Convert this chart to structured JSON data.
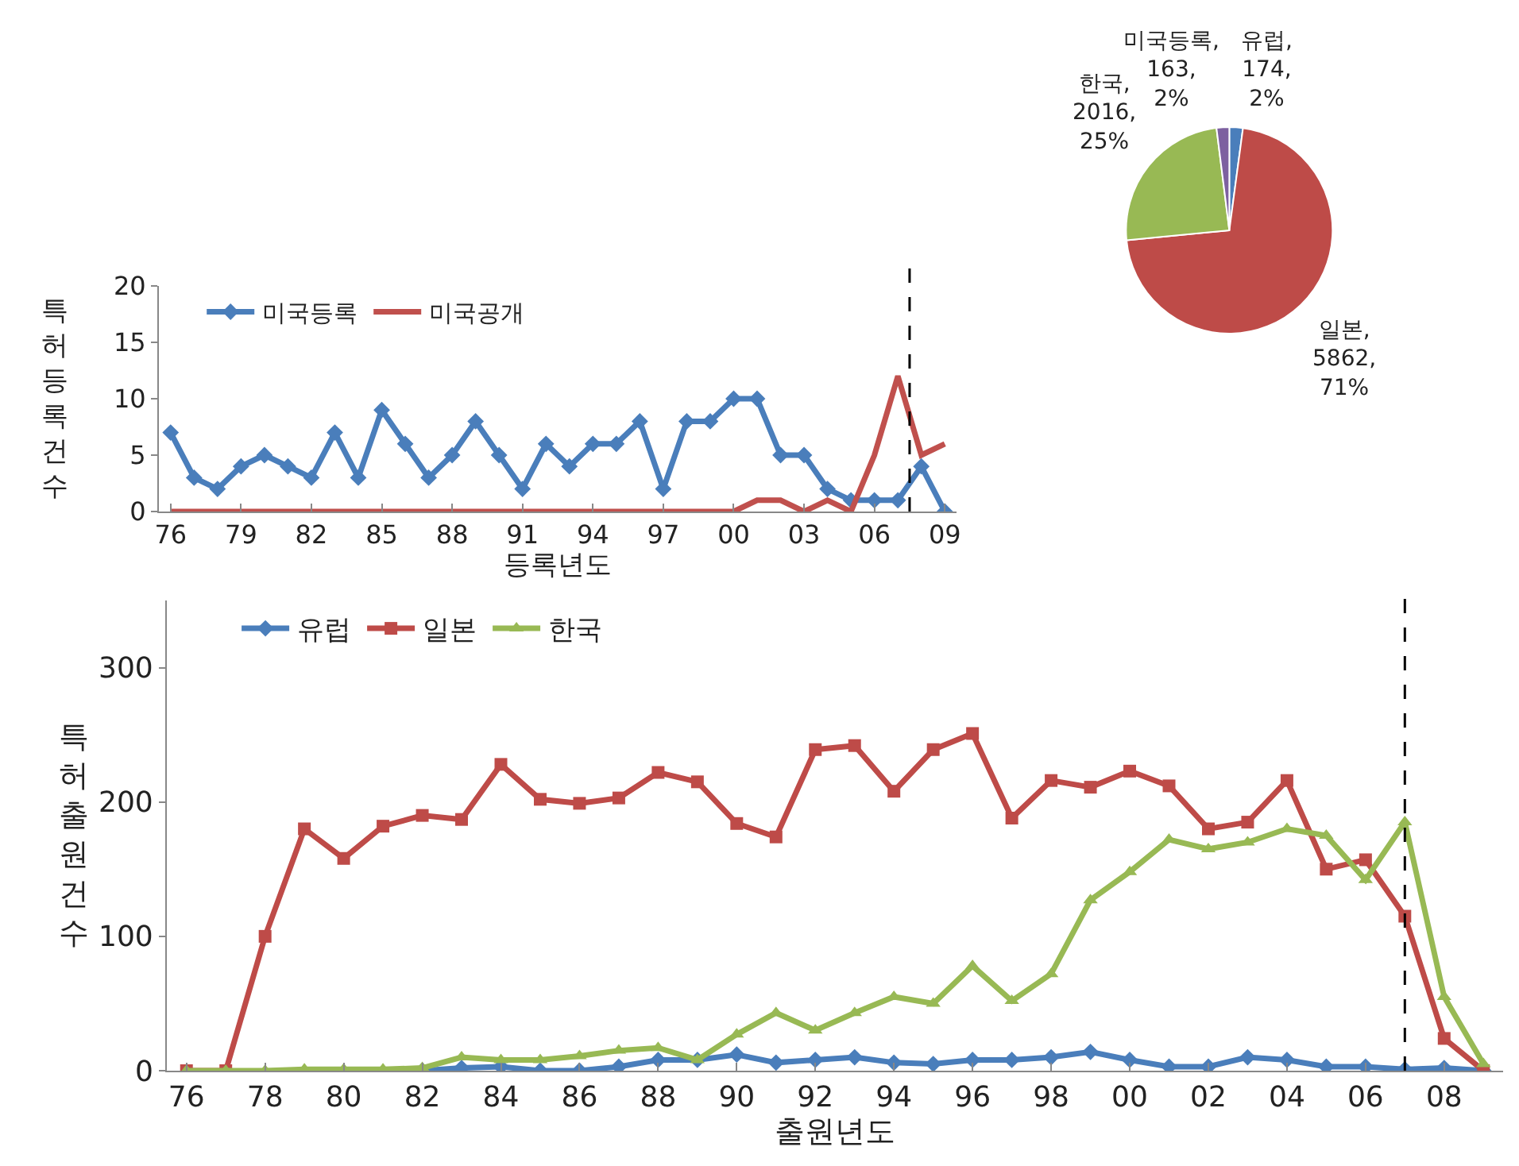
{
  "chart_data": [
    {
      "type": "pie",
      "categories": [
        "유럽",
        "일본",
        "한국",
        "미국등록"
      ],
      "values": [
        174,
        5862,
        2016,
        163
      ],
      "value_labels": [
        ",\n174,\n2%",
        ",\n5862,\n71%",
        ",\n2016,\n25%",
        ",\n163,\n2%"
      ],
      "colors": [
        "#4a7ebb",
        "#be4b48",
        "#98b954",
        "#7d60a0"
      ],
      "legend": false
    },
    {
      "type": "line",
      "xlabel": "등록년도",
      "ylabel": "특허등록건수",
      "x": [
        1976,
        1977,
        1978,
        1979,
        1980,
        1981,
        1982,
        1983,
        1984,
        1985,
        1986,
        1987,
        1988,
        1989,
        1990,
        1991,
        1992,
        1993,
        1994,
        1995,
        1996,
        1997,
        1998,
        1999,
        2000,
        2001,
        2002,
        2003,
        2004,
        2005,
        2006,
        2007,
        2008,
        2009
      ],
      "series": [
        {
          "name": "미국등록",
          "color": "#4a7ebb",
          "marker": "diamond",
          "values": [
            7,
            3,
            2,
            4,
            5,
            4,
            3,
            7,
            3,
            9,
            6,
            3,
            5,
            8,
            5,
            2,
            6,
            4,
            6,
            6,
            8,
            2,
            8,
            8,
            10,
            10,
            5,
            5,
            2,
            1,
            1,
            1,
            4,
            0
          ]
        },
        {
          "name": "미국공개",
          "color": "#c0504d",
          "marker": "none",
          "values": [
            0,
            0,
            0,
            0,
            0,
            0,
            0,
            0,
            0,
            0,
            0,
            0,
            0,
            0,
            0,
            0,
            0,
            0,
            0,
            0,
            0,
            0,
            0,
            0,
            0,
            1,
            1,
            0,
            1,
            0,
            5,
            12,
            5,
            6
          ]
        }
      ],
      "xlim": [
        1975.5,
        2009.5
      ],
      "xticks": [
        {
          "value": 1976,
          "label": "76"
        },
        {
          "value": 1979,
          "label": "79"
        },
        {
          "value": 1982,
          "label": "82"
        },
        {
          "value": 1985,
          "label": "85"
        },
        {
          "value": 1988,
          "label": "88"
        },
        {
          "value": 1991,
          "label": "91"
        },
        {
          "value": 1994,
          "label": "94"
        },
        {
          "value": 1997,
          "label": "97"
        },
        {
          "value": 2000,
          "label": "00"
        },
        {
          "value": 2003,
          "label": "03"
        },
        {
          "value": 2006,
          "label": "06"
        },
        {
          "value": 2009,
          "label": "09"
        }
      ],
      "ylim": [
        0,
        20
      ],
      "yticks": [
        0,
        5,
        10,
        15,
        20
      ],
      "grid": false,
      "legend": "top left",
      "line_style": "solid",
      "ref_lines": [
        {
          "axis": "x",
          "value": 2007.5,
          "line_style": "dashed",
          "color": "#000000"
        }
      ]
    },
    {
      "type": "line",
      "xlabel": "출원년도",
      "ylabel": "특허출원건수",
      "x": [
        1976,
        1977,
        1978,
        1979,
        1980,
        1981,
        1982,
        1983,
        1984,
        1985,
        1986,
        1987,
        1988,
        1989,
        1990,
        1991,
        1992,
        1993,
        1994,
        1995,
        1996,
        1997,
        1998,
        1999,
        2000,
        2001,
        2002,
        2003,
        2004,
        2005,
        2006,
        2007,
        2008,
        2009
      ],
      "series": [
        {
          "name": "유럽",
          "color": "#4a7ebb",
          "marker": "diamond",
          "values": [
            null,
            null,
            null,
            null,
            null,
            null,
            0,
            2,
            3,
            0,
            0,
            3,
            8,
            8,
            12,
            6,
            8,
            10,
            6,
            5,
            8,
            8,
            10,
            14,
            8,
            3,
            3,
            10,
            8,
            3,
            3,
            1,
            2,
            0
          ]
        },
        {
          "name": "일본",
          "color": "#be4b48",
          "marker": "square",
          "values": [
            0,
            0,
            100,
            180,
            158,
            182,
            190,
            187,
            228,
            202,
            199,
            203,
            222,
            215,
            184,
            174,
            239,
            242,
            208,
            239,
            251,
            188,
            216,
            211,
            223,
            212,
            180,
            185,
            216,
            150,
            157,
            115,
            24,
            0
          ]
        },
        {
          "name": "한국",
          "color": "#98b954",
          "marker": "triangle",
          "values": [
            0,
            0,
            0,
            1,
            1,
            1,
            2,
            10,
            8,
            8,
            11,
            15,
            17,
            8,
            27,
            43,
            30,
            43,
            55,
            50,
            78,
            52,
            72,
            127,
            148,
            172,
            165,
            170,
            180,
            175,
            142,
            185,
            55,
            5
          ]
        }
      ],
      "xlim": [
        1975.5,
        2009.5
      ],
      "xticks": [
        {
          "value": 1976,
          "label": "76"
        },
        {
          "value": 1978,
          "label": "78"
        },
        {
          "value": 1980,
          "label": "80"
        },
        {
          "value": 1982,
          "label": "82"
        },
        {
          "value": 1984,
          "label": "84"
        },
        {
          "value": 1986,
          "label": "86"
        },
        {
          "value": 1988,
          "label": "88"
        },
        {
          "value": 1990,
          "label": "90"
        },
        {
          "value": 1992,
          "label": "92"
        },
        {
          "value": 1994,
          "label": "94"
        },
        {
          "value": 1996,
          "label": "96"
        },
        {
          "value": 1998,
          "label": "98"
        },
        {
          "value": 2000,
          "label": "00"
        },
        {
          "value": 2002,
          "label": "02"
        },
        {
          "value": 2004,
          "label": "04"
        },
        {
          "value": 2006,
          "label": "06"
        },
        {
          "value": 2008,
          "label": "08"
        }
      ],
      "ylim": [
        0,
        350
      ],
      "yticks": [
        0,
        100,
        200,
        300
      ],
      "grid": false,
      "legend": "top left",
      "line_style": "solid",
      "ref_lines": [
        {
          "axis": "x",
          "value": 2007,
          "line_style": "dashed",
          "color": "#000000"
        }
      ]
    }
  ]
}
